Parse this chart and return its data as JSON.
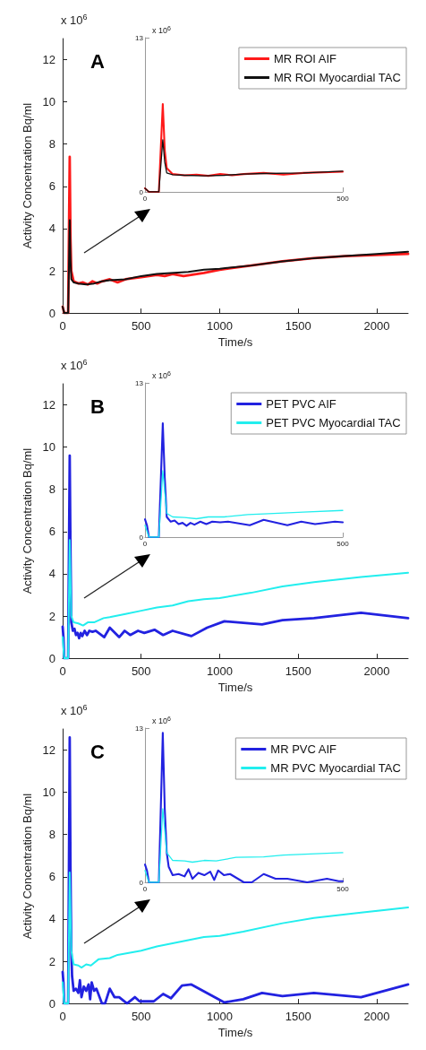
{
  "chart_data": [
    {
      "type": "line",
      "title": "A",
      "xlabel": "Time/s",
      "ylabel": "Activity Concentration Bq/ml",
      "annotations": [
        "x 10$^{6}$"
      ],
      "xlim": [
        0,
        2200
      ],
      "xticks": [
        0,
        500,
        1000,
        1500,
        2000
      ],
      "ylim": [
        0,
        13
      ],
      "yticks": [
        0,
        2,
        4,
        6,
        8,
        10,
        12
      ],
      "grid": false,
      "legend": "top right",
      "series": [
        {
          "name": "MR ROI AIF",
          "color": "#ff1a1a",
          "x": [
            0,
            10,
            35,
            45,
            50,
            55,
            70,
            100,
            130,
            160,
            190,
            220,
            250,
            300,
            350,
            400,
            500,
            600,
            650,
            700,
            770,
            900,
            1000,
            1200,
            1400,
            1600,
            1800,
            2000,
            2200
          ],
          "values": [
            0.3,
            0,
            0,
            7.4,
            3.5,
            2.0,
            1.5,
            1.4,
            1.45,
            1.35,
            1.5,
            1.4,
            1.5,
            1.6,
            1.45,
            1.6,
            1.7,
            1.8,
            1.75,
            1.85,
            1.75,
            1.9,
            2.05,
            2.25,
            2.45,
            2.6,
            2.7,
            2.75,
            2.8
          ]
        },
        {
          "name": "MR ROI Myocardial TAC",
          "color": "#111111",
          "x": [
            0,
            10,
            35,
            45,
            50,
            55,
            70,
            100,
            150,
            200,
            250,
            300,
            400,
            500,
            600,
            800,
            900,
            1000,
            1200,
            1400,
            1600,
            1800,
            2000,
            2200
          ],
          "values": [
            0.3,
            0,
            0,
            4.4,
            2.5,
            1.6,
            1.45,
            1.4,
            1.35,
            1.4,
            1.5,
            1.55,
            1.6,
            1.75,
            1.85,
            1.95,
            2.05,
            2.1,
            2.25,
            2.45,
            2.6,
            2.7,
            2.8,
            2.9
          ]
        }
      ]
    },
    {
      "type": "line",
      "annotations": [
        "x 10$^{6}$"
      ],
      "xlim": [
        0,
        500
      ],
      "xticks": [
        0,
        500
      ],
      "ylim": [
        0,
        13
      ],
      "yticks": [
        0,
        13
      ],
      "grid": false,
      "series": [
        {
          "color": "#ff1a1a",
          "x": [
            0,
            10,
            35,
            45,
            50,
            55,
            70,
            100,
            130,
            160,
            190,
            220,
            250,
            300,
            350,
            400,
            500
          ],
          "values": [
            0.3,
            0,
            0,
            7.4,
            3.5,
            2.0,
            1.5,
            1.4,
            1.45,
            1.35,
            1.5,
            1.4,
            1.5,
            1.6,
            1.45,
            1.6,
            1.7
          ]
        },
        {
          "color": "#111111",
          "x": [
            0,
            10,
            35,
            45,
            50,
            55,
            70,
            100,
            150,
            200,
            250,
            300,
            400,
            500
          ],
          "values": [
            0.3,
            0,
            0,
            4.4,
            2.5,
            1.6,
            1.45,
            1.4,
            1.35,
            1.4,
            1.5,
            1.55,
            1.6,
            1.75
          ]
        }
      ]
    },
    {
      "type": "line",
      "title": "B",
      "xlabel": "Time/s",
      "ylabel": "Activity Concentration Bq/ml",
      "annotations": [
        "x 10$^{6}$"
      ],
      "xlim": [
        0,
        2200
      ],
      "xticks": [
        0,
        500,
        1000,
        1500,
        2000
      ],
      "ylim": [
        0,
        13
      ],
      "yticks": [
        0,
        2,
        4,
        6,
        8,
        10,
        12
      ],
      "grid": false,
      "legend": "top right",
      "series": [
        {
          "name": "PET PVC AIF",
          "color": "#2222e0",
          "x": [
            0,
            5,
            10,
            35,
            45,
            50,
            55,
            65,
            75,
            85,
            95,
            105,
            115,
            125,
            140,
            155,
            170,
            190,
            210,
            265,
            300,
            360,
            395,
            430,
            480,
            520,
            585,
            640,
            700,
            820,
            920,
            1030,
            1270,
            1400,
            1600,
            1900,
            2200
          ],
          "values": [
            1.5,
            1.0,
            0,
            0,
            9.6,
            5,
            1.7,
            1.3,
            1.4,
            1.1,
            1.2,
            0.95,
            1.2,
            1.05,
            1.3,
            1.1,
            1.3,
            1.25,
            1.3,
            1.0,
            1.45,
            1.0,
            1.3,
            1.1,
            1.3,
            1.2,
            1.35,
            1.1,
            1.3,
            1.05,
            1.45,
            1.75,
            1.6,
            1.8,
            1.9,
            2.15,
            1.9
          ]
        },
        {
          "name": "PET PVC Myocardial TAC",
          "color": "#22eeee",
          "x": [
            0,
            10,
            35,
            45,
            55,
            70,
            100,
            130,
            160,
            200,
            260,
            300,
            400,
            500,
            600,
            700,
            800,
            900,
            1000,
            1200,
            1400,
            1600,
            1900,
            2200
          ],
          "values": [
            1.0,
            0,
            0,
            5.6,
            2.0,
            1.7,
            1.65,
            1.55,
            1.7,
            1.7,
            1.9,
            1.95,
            2.1,
            2.25,
            2.4,
            2.5,
            2.7,
            2.8,
            2.85,
            3.1,
            3.4,
            3.6,
            3.85,
            4.05
          ]
        }
      ]
    },
    {
      "type": "line",
      "annotations": [
        "x 10$^{6}$"
      ],
      "xlim": [
        0,
        500
      ],
      "xticks": [
        0,
        500
      ],
      "ylim": [
        0,
        13
      ],
      "yticks": [
        0,
        13
      ],
      "grid": false,
      "series": [
        {
          "color": "#2222e0",
          "x": [
            0,
            5,
            10,
            35,
            45,
            50,
            55,
            65,
            75,
            85,
            95,
            105,
            115,
            125,
            140,
            155,
            170,
            190,
            210,
            265,
            300,
            360,
            395,
            430,
            480,
            500
          ],
          "values": [
            1.5,
            1.0,
            0,
            0,
            9.6,
            5,
            1.7,
            1.3,
            1.4,
            1.1,
            1.2,
            0.95,
            1.2,
            1.05,
            1.3,
            1.1,
            1.3,
            1.25,
            1.3,
            1.0,
            1.45,
            1.0,
            1.3,
            1.1,
            1.3,
            1.25
          ]
        },
        {
          "color": "#22eeee",
          "x": [
            0,
            10,
            35,
            45,
            55,
            70,
            100,
            130,
            160,
            200,
            260,
            300,
            400,
            500
          ],
          "values": [
            1.0,
            0,
            0,
            5.6,
            2.0,
            1.7,
            1.65,
            1.55,
            1.7,
            1.7,
            1.9,
            1.95,
            2.1,
            2.25
          ]
        }
      ]
    },
    {
      "type": "line",
      "title": "C",
      "xlabel": "Time/s",
      "ylabel": "Activity Concentration Bq/ml",
      "annotations": [
        "x 10$^{6}$"
      ],
      "xlim": [
        0,
        2200
      ],
      "xticks": [
        0,
        500,
        1000,
        1500,
        2000
      ],
      "ylim": [
        0,
        13
      ],
      "yticks": [
        0,
        2,
        4,
        6,
        8,
        10,
        12
      ],
      "grid": false,
      "legend": "top right",
      "series": [
        {
          "name": "MR PVC AIF",
          "color": "#2222e0",
          "x": [
            0,
            5,
            10,
            35,
            45,
            50,
            55,
            60,
            70,
            85,
            100,
            110,
            120,
            135,
            150,
            165,
            175,
            185,
            200,
            215,
            250,
            270,
            300,
            330,
            360,
            410,
            460,
            490,
            580,
            640,
            690,
            760,
            820,
            1030,
            1150,
            1270,
            1400,
            1600,
            1900,
            2200
          ],
          "values": [
            1.5,
            1.0,
            0,
            0,
            12.6,
            6.2,
            2.5,
            1.3,
            0.6,
            0.7,
            0.5,
            1.1,
            0.3,
            0.8,
            0.6,
            0.9,
            0.2,
            1.0,
            0.6,
            0.7,
            0,
            0,
            0.7,
            0.3,
            0.3,
            0,
            0.3,
            0.1,
            0.1,
            0.45,
            0.25,
            0.85,
            0.9,
            0.05,
            0.2,
            0.5,
            0.35,
            0.5,
            0.3,
            0.9
          ]
        },
        {
          "name": "MR PVC Myocardial TAC",
          "color": "#22eeee",
          "x": [
            0,
            10,
            35,
            45,
            55,
            70,
            100,
            120,
            150,
            180,
            230,
            300,
            350,
            500,
            600,
            800,
            900,
            1000,
            1150,
            1400,
            1600,
            1900,
            2200
          ],
          "values": [
            1.0,
            0,
            0,
            6.2,
            2.5,
            1.85,
            1.8,
            1.7,
            1.85,
            1.8,
            2.1,
            2.15,
            2.3,
            2.5,
            2.7,
            3.0,
            3.15,
            3.2,
            3.4,
            3.8,
            4.05,
            4.3,
            4.55
          ]
        }
      ]
    },
    {
      "type": "line",
      "annotations": [
        "x 10$^{6}$"
      ],
      "xlim": [
        0,
        500
      ],
      "xticks": [
        0,
        500
      ],
      "ylim": [
        0,
        13
      ],
      "yticks": [
        0,
        13
      ],
      "grid": false,
      "series": [
        {
          "color": "#2222e0",
          "x": [
            0,
            5,
            10,
            35,
            45,
            50,
            55,
            60,
            70,
            85,
            100,
            110,
            120,
            135,
            150,
            165,
            175,
            185,
            200,
            215,
            250,
            270,
            300,
            330,
            360,
            410,
            460,
            490,
            500
          ],
          "values": [
            1.5,
            1.0,
            0,
            0,
            12.6,
            6.2,
            2.5,
            1.3,
            0.6,
            0.7,
            0.5,
            1.1,
            0.3,
            0.8,
            0.6,
            0.9,
            0.2,
            1.0,
            0.6,
            0.7,
            0,
            0,
            0.7,
            0.3,
            0.3,
            0,
            0.3,
            0.1,
            0.1
          ]
        },
        {
          "color": "#22eeee",
          "x": [
            0,
            10,
            35,
            45,
            55,
            70,
            100,
            120,
            150,
            180,
            230,
            300,
            350,
            500
          ],
          "values": [
            1.0,
            0,
            0,
            6.2,
            2.5,
            1.85,
            1.8,
            1.7,
            1.85,
            1.8,
            2.1,
            2.15,
            2.3,
            2.5
          ]
        }
      ]
    }
  ]
}
